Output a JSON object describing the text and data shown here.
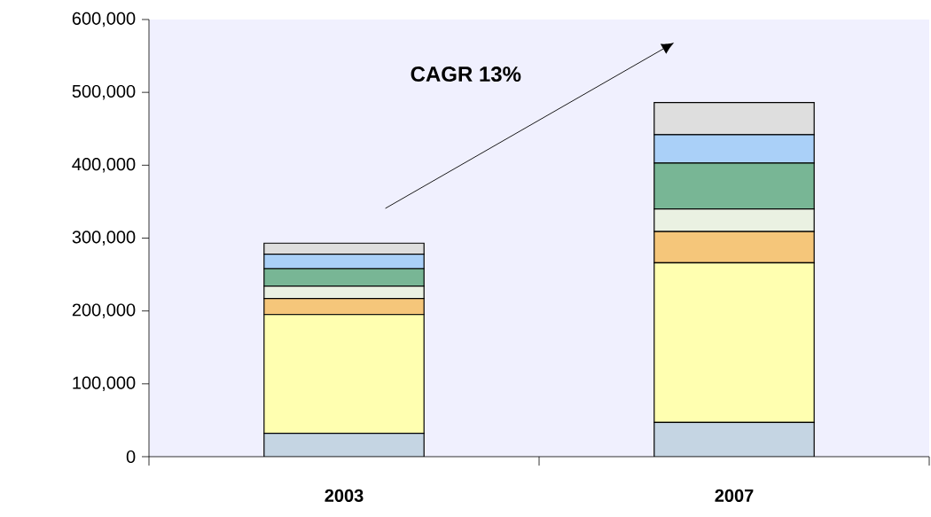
{
  "chart_data": {
    "type": "bar",
    "stacked": true,
    "categories": [
      "2003",
      "2007"
    ],
    "series": [
      {
        "color": "#c5d5e3",
        "values": [
          32000,
          47000
        ]
      },
      {
        "color": "#ffffb0",
        "values": [
          163000,
          219000
        ]
      },
      {
        "color": "#f5c67a",
        "values": [
          22000,
          43000
        ]
      },
      {
        "color": "#eaf1e2",
        "values": [
          17000,
          31000
        ]
      },
      {
        "color": "#78b695",
        "values": [
          24000,
          63000
        ]
      },
      {
        "color": "#aad0f8",
        "values": [
          20000,
          39000
        ]
      },
      {
        "color": "#dedede",
        "values": [
          15000,
          44000
        ]
      }
    ],
    "ylim": [
      0,
      600000
    ],
    "yticks": [
      {
        "value": 0,
        "label": "0"
      },
      {
        "value": 100000,
        "label": "100,000"
      },
      {
        "value": 200000,
        "label": "200,000"
      },
      {
        "value": 300000,
        "label": "300,000"
      },
      {
        "value": 400000,
        "label": "400,000"
      },
      {
        "value": 500000,
        "label": "500,000"
      },
      {
        "value": 600000,
        "label": "600,000"
      }
    ],
    "annotations": [
      "CAGR 13%"
    ],
    "grid": false
  }
}
